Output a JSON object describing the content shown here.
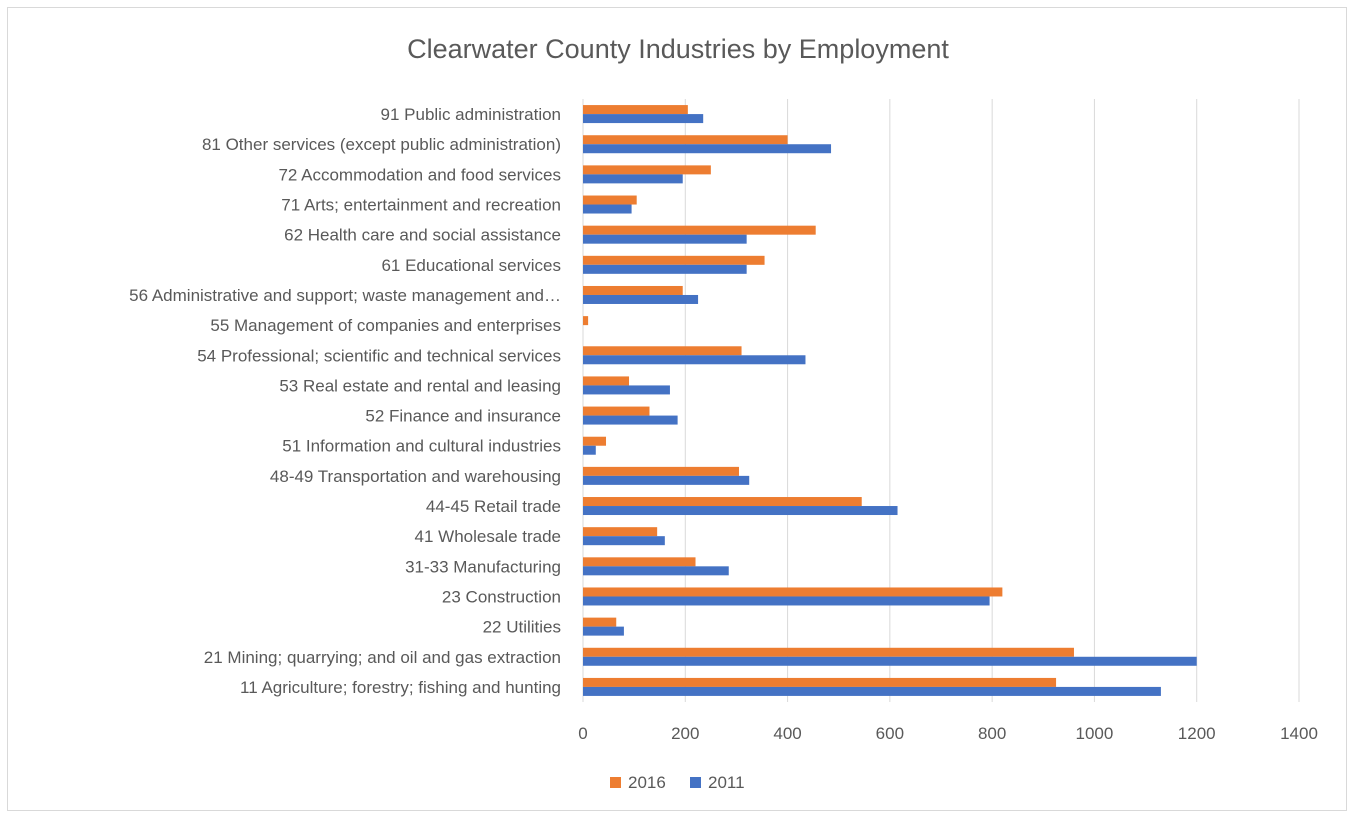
{
  "chart_data": {
    "type": "bar",
    "orientation": "horizontal",
    "title": "Clearwater County Industries by Employment",
    "xlabel": "",
    "ylabel": "",
    "xlim": [
      0,
      1400
    ],
    "x_ticks": [
      0,
      200,
      400,
      600,
      800,
      1000,
      1200,
      1400
    ],
    "grid": true,
    "legend_position": "bottom",
    "categories": [
      "11 Agriculture; forestry; fishing and hunting",
      "21 Mining; quarrying; and oil and gas extraction",
      "22 Utilities",
      "23 Construction",
      "31-33 Manufacturing",
      "41 Wholesale trade",
      "44-45 Retail trade",
      "48-49 Transportation and warehousing",
      "51 Information and cultural industries",
      "52 Finance and insurance",
      "53 Real estate and rental and leasing",
      "54 Professional; scientific and technical services",
      "55 Management of companies and enterprises",
      "56 Administrative and support; waste management and…",
      "61 Educational services",
      "62 Health care and social assistance",
      "71 Arts; entertainment and recreation",
      "72 Accommodation and food services",
      "81 Other services (except public administration)",
      "91 Public administration"
    ],
    "series": [
      {
        "name": "2016",
        "color": "#ed7d31",
        "values": [
          925,
          960,
          65,
          820,
          220,
          145,
          545,
          305,
          45,
          130,
          90,
          310,
          10,
          195,
          355,
          455,
          105,
          250,
          400,
          205
        ]
      },
      {
        "name": "2011",
        "color": "#4472c4",
        "values": [
          1130,
          1200,
          80,
          795,
          285,
          160,
          615,
          325,
          25,
          185,
          170,
          435,
          0,
          225,
          320,
          320,
          95,
          195,
          485,
          235
        ]
      }
    ]
  }
}
